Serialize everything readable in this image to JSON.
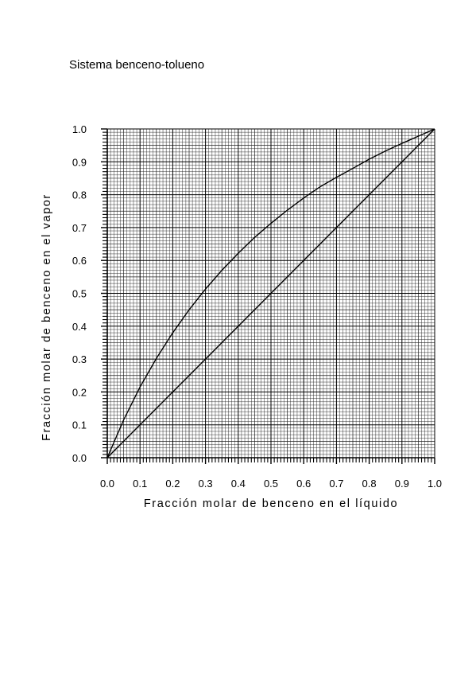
{
  "chart_data": {
    "type": "line",
    "title": "Sistema benceno-tolueno",
    "xlabel": "Fracción molar de benceno en el líquido",
    "ylabel": "Fracción molar de benceno en el vapor",
    "xlim": [
      0,
      1
    ],
    "ylim": [
      0,
      1
    ],
    "grid": true,
    "x_tick_labels": [
      "0.0",
      "0.1",
      "0.2",
      "0.3",
      "0.4",
      "0.5",
      "0.6",
      "0.7",
      "0.8",
      "0.9",
      "1.0"
    ],
    "y_tick_labels": [
      "0.0",
      "0.1",
      "0.2",
      "0.3",
      "0.4",
      "0.5",
      "0.6",
      "0.7",
      "0.8",
      "0.9",
      "1.0"
    ],
    "series": [
      {
        "x": [
          0,
          0.05,
          0.1,
          0.15,
          0.2,
          0.25,
          0.3,
          0.35,
          0.4,
          0.45,
          0.5,
          0.55,
          0.6,
          0.65,
          0.7,
          0.75,
          0.8,
          0.85,
          0.9,
          0.95,
          1.0
        ],
        "y": [
          0,
          0.115,
          0.215,
          0.302,
          0.38,
          0.45,
          0.513,
          0.57,
          0.622,
          0.67,
          0.713,
          0.753,
          0.79,
          0.824,
          0.853,
          0.88,
          0.908,
          0.933,
          0.956,
          0.978,
          1.0
        ]
      },
      {
        "x": [
          0,
          1
        ],
        "y": [
          0,
          1
        ]
      }
    ]
  }
}
